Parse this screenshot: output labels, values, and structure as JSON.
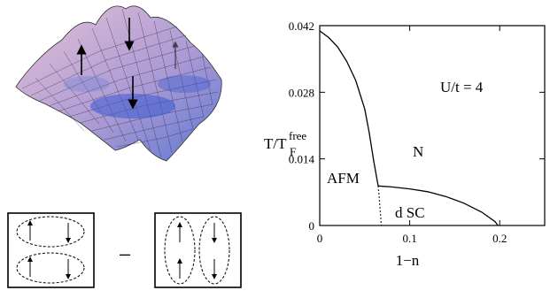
{
  "chart_data": {
    "type": "line",
    "xlabel": "1−n",
    "ylabel": {
      "main": "T/T",
      "sub": "F",
      "sup": "free"
    },
    "xlim": [
      0,
      0.25
    ],
    "ylim": [
      0,
      0.042
    ],
    "x_ticks": [
      0,
      0.1,
      0.2
    ],
    "x_tick_labels": [
      "0",
      "0.1",
      "0.2"
    ],
    "y_ticks": [
      0,
      0.014,
      0.028,
      0.042
    ],
    "y_tick_labels": [
      "0",
      "0.014",
      "0.028",
      "0.042"
    ],
    "grid": false,
    "annotations": {
      "param": "U/t = 4",
      "normal": "N",
      "afm": "AFM",
      "dsc": "d SC"
    },
    "series": [
      {
        "style": "solid",
        "points": [
          [
            0,
            0.0409
          ],
          [
            0.01,
            0.0395
          ],
          [
            0.02,
            0.0375
          ],
          [
            0.03,
            0.0345
          ],
          [
            0.04,
            0.0305
          ],
          [
            0.05,
            0.0245
          ],
          [
            0.055,
            0.0195
          ],
          [
            0.06,
            0.0135
          ],
          [
            0.065,
            0.0083
          ]
        ]
      },
      {
        "style": "dotted",
        "points": [
          [
            0.065,
            0.0083
          ],
          [
            0.066,
            0.006
          ],
          [
            0.067,
            0.0035
          ],
          [
            0.068,
            0.0012
          ],
          [
            0.0685,
            0
          ]
        ]
      },
      {
        "style": "solid",
        "points": [
          [
            0.065,
            0.0083
          ],
          [
            0.08,
            0.0081
          ],
          [
            0.1,
            0.0077
          ],
          [
            0.12,
            0.0071
          ],
          [
            0.14,
            0.0061
          ],
          [
            0.16,
            0.0047
          ],
          [
            0.18,
            0.0028
          ],
          [
            0.195,
            0.0008
          ],
          [
            0.198,
            0
          ]
        ]
      }
    ]
  },
  "pairing_diagram": {
    "operator": "−"
  }
}
